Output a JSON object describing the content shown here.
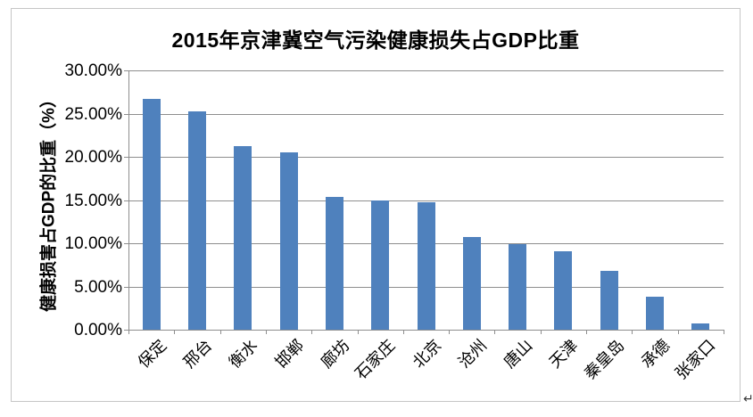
{
  "page": {
    "return_mark": "↵"
  },
  "chart_data": {
    "type": "bar",
    "title": "2015年京津冀空气污染健康损失占GDP比重",
    "xlabel": "",
    "ylabel": "健康损害占GDP的比重（%）",
    "categories": [
      "保定",
      "邢台",
      "衡水",
      "邯郸",
      "廊坊",
      "石家庄",
      "北京",
      "沧州",
      "唐山",
      "天津",
      "秦皇岛",
      "承德",
      "张家口"
    ],
    "values": [
      26.7,
      25.3,
      21.2,
      20.5,
      15.4,
      15.0,
      14.7,
      10.7,
      9.9,
      9.1,
      6.8,
      3.8,
      0.7
    ],
    "values_unit": "%",
    "ylim": [
      0,
      30
    ],
    "ytick_step": 5,
    "ytick_labels": [
      "0.00%",
      "5.00%",
      "10.00%",
      "15.00%",
      "20.00%",
      "25.00%",
      "30.00%"
    ],
    "grid": true,
    "legend_position": "none",
    "bar_color": "#4F81BD",
    "gridline_color": "#8E8E8E",
    "axis_color": "#8E8E8E",
    "frame_border_color": "#C6C6C6",
    "background_color": "#FFFFFF"
  }
}
